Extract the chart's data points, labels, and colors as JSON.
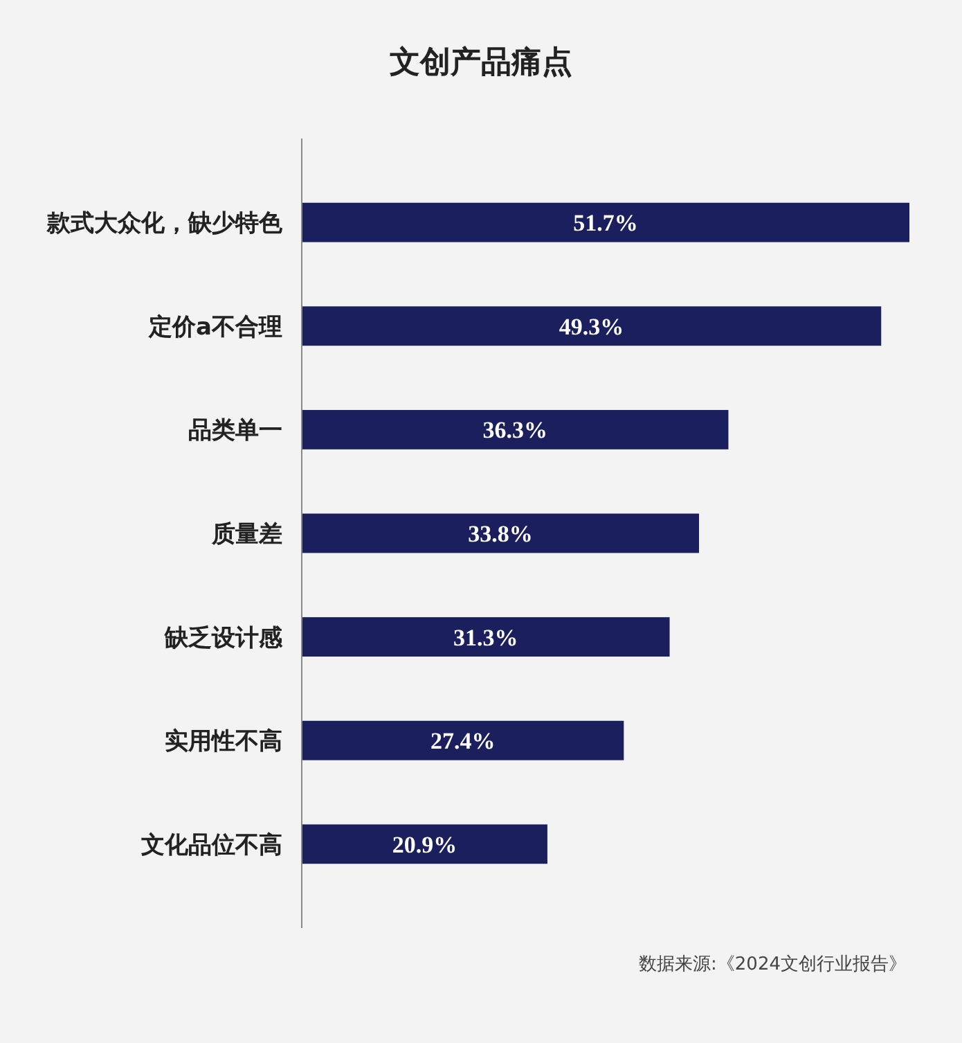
{
  "chart_data": {
    "type": "bar",
    "orientation": "horizontal",
    "title": "文创产品痛点",
    "categories": [
      "款式大众化，缺少特色",
      "定价a不合理",
      "品类单一",
      "质量差",
      "缺乏设计感",
      "实用性不高",
      "文化品位不高"
    ],
    "values": [
      51.7,
      49.3,
      36.3,
      33.8,
      31.3,
      27.4,
      20.9
    ],
    "value_labels": [
      "51.7%",
      "49.3%",
      "36.3%",
      "33.8%",
      "31.3%",
      "27.4%",
      "20.9%"
    ],
    "color": "#1b1f5e",
    "xlim": [
      0,
      51.7
    ],
    "tick_labels": "y",
    "annotations": [
      "数据来源:《2024文创行业报告》"
    ]
  }
}
